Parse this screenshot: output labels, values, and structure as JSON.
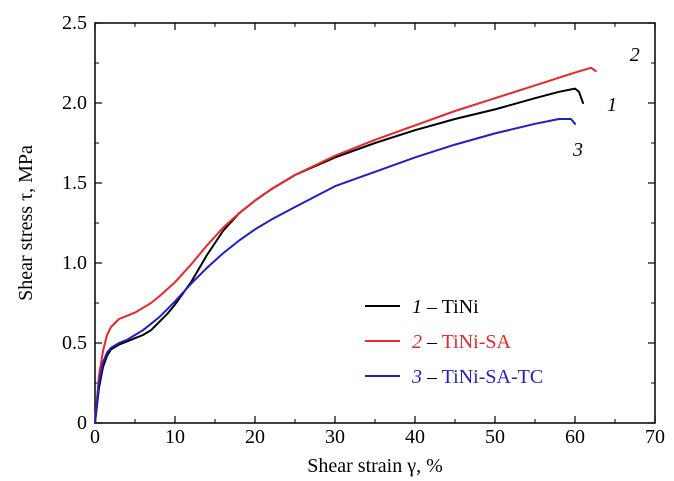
{
  "chart_data": {
    "type": "line",
    "xlabel": "Shear strain γ, %",
    "ylabel": "Shear stress τ, MPa",
    "xlim": [
      0,
      70
    ],
    "ylim": [
      0,
      2.5
    ],
    "xticks": [
      0,
      10,
      20,
      30,
      40,
      50,
      60,
      70
    ],
    "xtick_labels": [
      "0",
      "10",
      "20",
      "30",
      "40",
      "50",
      "60",
      "70"
    ],
    "yticks": [
      0,
      0.5,
      1.0,
      1.5,
      2.0,
      2.5
    ],
    "ytick_labels": [
      "0",
      "0.5",
      "1.0",
      "1.5",
      "2.0",
      "2.5"
    ],
    "grid": false,
    "legend_position": "bottom-right",
    "series": [
      {
        "name": "TiNi",
        "number": "1",
        "color": "#000000",
        "x": [
          0,
          0.5,
          1,
          1.5,
          2,
          3,
          4,
          5,
          6,
          7,
          8,
          9,
          10,
          12,
          14,
          16,
          18,
          20,
          22,
          25,
          30,
          35,
          40,
          45,
          50,
          55,
          58,
          60,
          60.5,
          61
        ],
        "y": [
          0,
          0.22,
          0.35,
          0.42,
          0.46,
          0.49,
          0.51,
          0.53,
          0.55,
          0.58,
          0.63,
          0.68,
          0.74,
          0.88,
          1.05,
          1.2,
          1.31,
          1.39,
          1.46,
          1.55,
          1.66,
          1.75,
          1.83,
          1.9,
          1.96,
          2.03,
          2.07,
          2.09,
          2.07,
          2.0
        ]
      },
      {
        "name": "TiNi-SA",
        "number": "2",
        "color": "#e8262b",
        "x": [
          0,
          0.5,
          1,
          1.5,
          2,
          3,
          4,
          5,
          6,
          7,
          8,
          10,
          12,
          14,
          16,
          18,
          20,
          22,
          25,
          30,
          35,
          40,
          45,
          50,
          55,
          60,
          62,
          62.6
        ],
        "y": [
          0,
          0.3,
          0.45,
          0.55,
          0.6,
          0.65,
          0.67,
          0.69,
          0.72,
          0.75,
          0.79,
          0.88,
          0.99,
          1.11,
          1.22,
          1.31,
          1.39,
          1.46,
          1.55,
          1.67,
          1.77,
          1.86,
          1.95,
          2.03,
          2.11,
          2.19,
          2.22,
          2.2
        ]
      },
      {
        "name": "TiNi-SA-TC",
        "number": "3",
        "color": "#1f1fc8",
        "x": [
          0,
          0.5,
          1,
          1.5,
          2,
          3,
          4,
          5,
          6,
          7,
          8,
          9,
          10,
          12,
          14,
          16,
          18,
          20,
          22,
          25,
          30,
          35,
          40,
          45,
          50,
          55,
          58,
          59.5,
          60
        ],
        "y": [
          0,
          0.25,
          0.38,
          0.44,
          0.47,
          0.5,
          0.52,
          0.55,
          0.58,
          0.62,
          0.66,
          0.71,
          0.76,
          0.87,
          0.97,
          1.06,
          1.14,
          1.21,
          1.27,
          1.35,
          1.48,
          1.57,
          1.66,
          1.74,
          1.81,
          1.87,
          1.9,
          1.9,
          1.87
        ]
      }
    ]
  }
}
